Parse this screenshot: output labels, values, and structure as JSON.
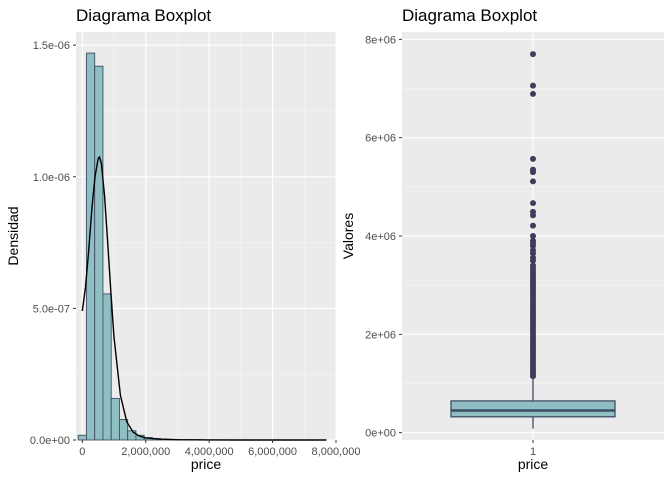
{
  "chart_data": [
    {
      "type": "histogram",
      "title": "Diagrama Boxplot",
      "xlabel": "price",
      "ylabel": "Densidad",
      "xlim": [
        -200000,
        8000000
      ],
      "ylim": [
        0,
        1.55e-06
      ],
      "x_ticks": [
        {
          "value": 0,
          "label": "0"
        },
        {
          "value": 2000000,
          "label": "2,000,000"
        },
        {
          "value": 4000000,
          "label": "4,000,000"
        },
        {
          "value": 6000000,
          "label": "6,000,000"
        },
        {
          "value": 8000000,
          "label": "8,000,000"
        }
      ],
      "y_ticks": [
        {
          "value": 0,
          "label": "0.0e+00"
        },
        {
          "value": 5e-07,
          "label": "5.0e-07"
        },
        {
          "value": 1e-06,
          "label": "1.0e-06"
        },
        {
          "value": 1.5e-06,
          "label": "1.5e-06"
        }
      ],
      "bin_width": 260000,
      "bin_starts": [
        -130000,
        130000,
        390000,
        650000,
        910000,
        1170000,
        1430000,
        1690000,
        1950000,
        2210000,
        2470000,
        2730000,
        2990000,
        3250000,
        3510000,
        3770000,
        4030000,
        4290000,
        4550000,
        4810000,
        5070000,
        5330000,
        5590000,
        5850000,
        6110000,
        6370000,
        6630000,
        6890000,
        7150000,
        7410000
      ],
      "densities": [
        1.8e-08,
        1.47e-06,
        1.42e-06,
        5.55e-07,
        1.58e-07,
        7.8e-08,
        3.5e-08,
        1.8e-08,
        9e-09,
        5e-09,
        3e-09,
        2e-09,
        1.5e-09,
        1e-09,
        1e-09,
        5e-10,
        5e-10,
        3e-10,
        3e-10,
        2e-10,
        2e-10,
        2e-10,
        1e-10,
        1e-10,
        1e-10,
        1e-10,
        1e-10,
        1e-10,
        1e-10,
        1e-10
      ],
      "density_curve": {
        "x": [
          0,
          100000,
          200000,
          300000,
          400000,
          500000,
          540000,
          600000,
          700000,
          800000,
          900000,
          1000000,
          1200000,
          1400000,
          1600000,
          1800000,
          2000000,
          2500000,
          3000000,
          4000000,
          5000000,
          6000000,
          7000000,
          7700000
        ],
        "y": [
          4.9e-07,
          5.8e-07,
          7.2e-07,
          8.8e-07,
          1e-06,
          1.07e-06,
          1.075e-06,
          1.05e-06,
          9.3e-07,
          7.5e-07,
          5.6e-07,
          3.9e-07,
          1.7e-07,
          7e-08,
          3e-08,
          1.5e-08,
          8e-09,
          3e-09,
          1e-09,
          3e-10,
          1e-10,
          0,
          0,
          0
        ]
      },
      "fill_color": "#8fbfc3",
      "stroke_color": "#3d4f66"
    },
    {
      "type": "boxplot",
      "title": "Diagrama Boxplot",
      "xlabel": "price",
      "ylabel": "Valores",
      "categories": [
        "1"
      ],
      "ylim": [
        -150000,
        8150000
      ],
      "y_ticks": [
        {
          "value": 0,
          "label": "0e+00"
        },
        {
          "value": 2000000,
          "label": "2e+06"
        },
        {
          "value": 4000000,
          "label": "4e+06"
        },
        {
          "value": 6000000,
          "label": "6e+06"
        },
        {
          "value": 8000000,
          "label": "8e+06"
        }
      ],
      "box": {
        "min": 80000,
        "q1": 322000,
        "median": 450000,
        "q3": 645000,
        "max": 1130000
      },
      "outliers": [
        7700000,
        7060000,
        6890000,
        5570000,
        5350000,
        5300000,
        5110000,
        4670000,
        4490000,
        4420000,
        4210000,
        4000000,
        3900000,
        3850000,
        3800000,
        3710000,
        3650000,
        3560000,
        3500000,
        3400000,
        3350000,
        3300000,
        3250000,
        3200000,
        3150000,
        3100000,
        3050000,
        3000000,
        2950000,
        2900000,
        2850000,
        2800000,
        2750000,
        2700000,
        2650000,
        2600000,
        2550000,
        2500000,
        2450000,
        2400000,
        2350000,
        2300000,
        2250000,
        2200000,
        2150000,
        2100000,
        2050000,
        2000000,
        1950000,
        1900000,
        1850000,
        1800000,
        1750000,
        1700000,
        1650000,
        1600000,
        1550000,
        1500000,
        1450000,
        1400000,
        1350000,
        1300000,
        1250000,
        1200000,
        1150000
      ],
      "fill_color": "#8fbfc3",
      "stroke_color": "#3d4f66",
      "point_color": "#3d3d5c"
    }
  ]
}
